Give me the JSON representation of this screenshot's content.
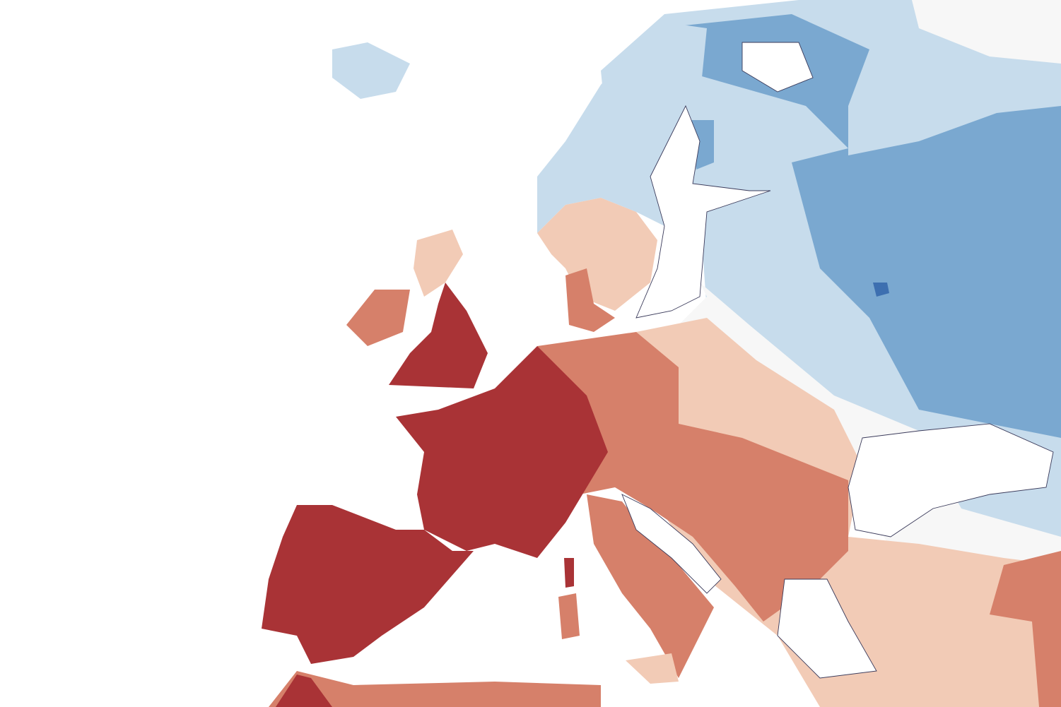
{
  "map": {
    "region": "Europe",
    "colors": {
      "dark_red": "#a93336",
      "mid_red": "#d6806a",
      "light_red": "#f2cbb6",
      "neutral": "#f7f7f7",
      "light_blue": "#c7dcec",
      "mid_blue": "#7aa8d0",
      "dark_blue": "#3d6fb0",
      "sea": "#ffffff",
      "coastline": "#3a3a5a"
    }
  }
}
